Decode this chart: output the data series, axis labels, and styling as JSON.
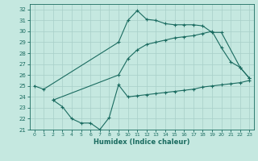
{
  "xlabel": "Humidex (Indice chaleur)",
  "ylabel": "",
  "bg_color": "#c5e8e0",
  "grid_color": "#a8cfc8",
  "line_color": "#1a6b60",
  "xlim": [
    -0.5,
    23.5
  ],
  "ylim": [
    21,
    32.5
  ],
  "yticks": [
    21,
    22,
    23,
    24,
    25,
    26,
    27,
    28,
    29,
    30,
    31,
    32
  ],
  "xticks": [
    0,
    1,
    2,
    3,
    4,
    5,
    6,
    7,
    8,
    9,
    10,
    11,
    12,
    13,
    14,
    15,
    16,
    17,
    18,
    19,
    20,
    21,
    22,
    23
  ],
  "line1_x": [
    0,
    1,
    9,
    10,
    11,
    12,
    13,
    14,
    15,
    16,
    17,
    18,
    19,
    20,
    22,
    23
  ],
  "line1_y": [
    25.0,
    24.7,
    29.0,
    31.0,
    31.9,
    31.1,
    31.0,
    30.7,
    30.6,
    30.6,
    30.6,
    30.5,
    29.9,
    29.9,
    26.7,
    25.7
  ],
  "line2_x": [
    2,
    3,
    4,
    5,
    6,
    7,
    8,
    9,
    10,
    11,
    12,
    13,
    14,
    15,
    16,
    17,
    18,
    19,
    20,
    21,
    22,
    23
  ],
  "line2_y": [
    23.7,
    23.1,
    22.0,
    21.6,
    21.6,
    21.0,
    22.1,
    25.1,
    24.0,
    24.1,
    24.2,
    24.3,
    24.4,
    24.5,
    24.6,
    24.7,
    24.9,
    25.0,
    25.1,
    25.2,
    25.3,
    25.5
  ],
  "line3_x": [
    2,
    9,
    10,
    11,
    12,
    13,
    14,
    15,
    16,
    17,
    18,
    19,
    20,
    21,
    22,
    23
  ],
  "line3_y": [
    23.7,
    26.0,
    27.5,
    28.3,
    28.8,
    29.0,
    29.2,
    29.4,
    29.5,
    29.6,
    29.8,
    30.0,
    28.5,
    27.2,
    26.7,
    25.7
  ]
}
